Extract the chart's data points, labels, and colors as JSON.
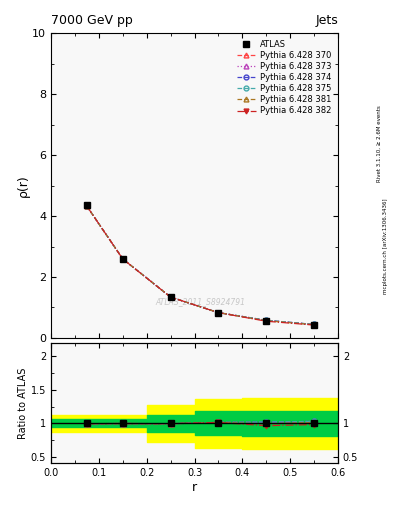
{
  "title_left": "7000 GeV pp",
  "title_right": "Jets",
  "ylabel_main": "ρ(r)",
  "ylabel_ratio": "Ratio to ATLAS",
  "xlabel": "r",
  "right_label1": "Rivet 3.1.10, ≥ 2.6M events",
  "right_label2": "mcplots.cern.ch [arXiv:1306.3436]",
  "watermark": "ATLAS_2011_S8924791",
  "ylim_main": [
    0,
    10
  ],
  "ylim_ratio": [
    0.4,
    2.2
  ],
  "xlim": [
    0.0,
    0.6
  ],
  "r_values": [
    0.075,
    0.15,
    0.25,
    0.35,
    0.45,
    0.55
  ],
  "atlas_data": [
    4.35,
    2.6,
    1.35,
    0.82,
    0.57,
    0.43
  ],
  "atlas_color": "#000000",
  "series": [
    {
      "label": "Pythia 6.428 370",
      "color": "#ff4444",
      "linestyle": "--",
      "marker": "^",
      "markerfacecolor": "none",
      "data": [
        4.32,
        2.59,
        1.34,
        0.83,
        0.575,
        0.44
      ],
      "ratio": [
        0.993,
        0.996,
        0.993,
        1.012,
        1.009,
        1.023
      ]
    },
    {
      "label": "Pythia 6.428 373",
      "color": "#bb44bb",
      "linestyle": ":",
      "marker": "^",
      "markerfacecolor": "none",
      "data": [
        4.32,
        2.59,
        1.34,
        0.83,
        0.578,
        0.442
      ],
      "ratio": [
        0.993,
        0.996,
        0.993,
        1.012,
        1.018,
        1.028
      ]
    },
    {
      "label": "Pythia 6.428 374",
      "color": "#4444cc",
      "linestyle": "--",
      "marker": "o",
      "markerfacecolor": "none",
      "data": [
        4.32,
        2.59,
        1.34,
        0.83,
        0.578,
        0.442
      ],
      "ratio": [
        0.993,
        0.996,
        0.993,
        1.012,
        1.018,
        1.028
      ]
    },
    {
      "label": "Pythia 6.428 375",
      "color": "#44aaaa",
      "linestyle": "--",
      "marker": "o",
      "markerfacecolor": "none",
      "data": [
        4.32,
        2.59,
        1.34,
        0.83,
        0.578,
        0.442
      ],
      "ratio": [
        0.993,
        0.996,
        0.993,
        1.012,
        1.018,
        1.028
      ]
    },
    {
      "label": "Pythia 6.428 381",
      "color": "#aa7722",
      "linestyle": "--",
      "marker": "^",
      "markerfacecolor": "none",
      "data": [
        4.32,
        2.59,
        1.34,
        0.83,
        0.565,
        0.434
      ],
      "ratio": [
        0.993,
        0.996,
        0.993,
        1.012,
        0.991,
        1.009
      ]
    },
    {
      "label": "Pythia 6.428 382",
      "color": "#cc2222",
      "linestyle": "-.",
      "marker": "v",
      "markerfacecolor": "#cc2222",
      "data": [
        4.32,
        2.59,
        1.34,
        0.83,
        0.548,
        0.422
      ],
      "ratio": [
        0.993,
        0.996,
        0.993,
        1.012,
        0.963,
        0.981
      ]
    }
  ],
  "yellow_band_x": [
    0.0,
    0.1,
    0.2,
    0.3,
    0.4,
    0.5,
    0.6
  ],
  "yellow_lo": [
    0.87,
    0.87,
    0.72,
    0.63,
    0.62,
    0.62,
    0.62
  ],
  "yellow_hi": [
    1.13,
    1.13,
    1.28,
    1.37,
    1.38,
    1.38,
    1.38
  ],
  "green_band_x": [
    0.0,
    0.1,
    0.2,
    0.3,
    0.4,
    0.5,
    0.6
  ],
  "green_lo": [
    0.94,
    0.94,
    0.87,
    0.82,
    0.81,
    0.81,
    0.81
  ],
  "green_hi": [
    1.06,
    1.06,
    1.13,
    1.18,
    1.19,
    1.19,
    1.19
  ],
  "yellow_color": "#ffff00",
  "green_color": "#00cc44",
  "bg_color": "#f8f8f8"
}
